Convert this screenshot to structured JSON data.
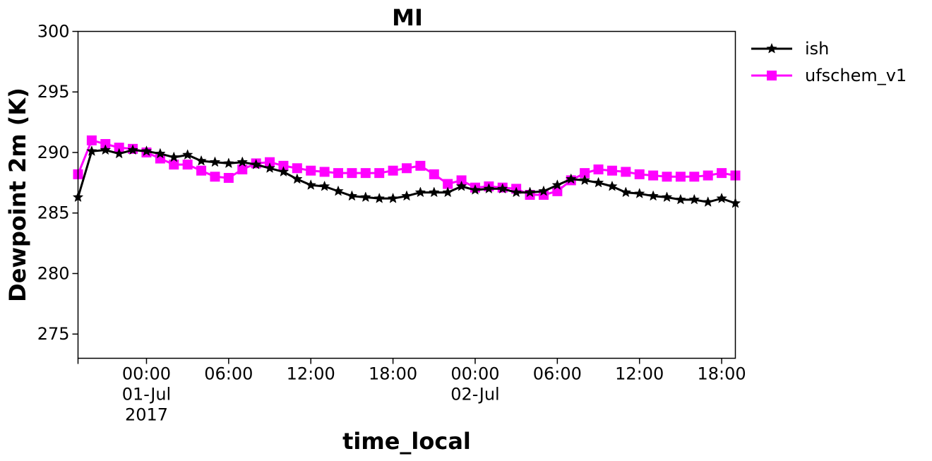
{
  "chart_data": {
    "type": "line",
    "title": "MI",
    "xlabel": "time_local",
    "ylabel": "Dewpoint 2m (K)",
    "ylim": [
      273,
      300
    ],
    "yticks": [
      275,
      280,
      285,
      290,
      295,
      300
    ],
    "xlim": [
      "2017-06-30 19:00",
      "2017-07-02 19:00"
    ],
    "xticks": [
      {
        "lines": [
          "00:00",
          "01-Jul",
          "2017"
        ]
      },
      {
        "lines": [
          "06:00"
        ]
      },
      {
        "lines": [
          "12:00"
        ]
      },
      {
        "lines": [
          "18:00"
        ]
      },
      {
        "lines": [
          "00:00",
          "02-Jul"
        ]
      },
      {
        "lines": [
          "06:00"
        ]
      },
      {
        "lines": [
          "12:00"
        ]
      },
      {
        "lines": [
          "18:00"
        ]
      }
    ],
    "x_start": "2017-06-30 19:00",
    "x_step": "1 hour",
    "series": [
      {
        "name": "ish",
        "color": "#000000",
        "marker": "star",
        "values": [
          286.3,
          290.1,
          290.2,
          289.9,
          290.2,
          290.1,
          289.9,
          289.6,
          289.8,
          289.3,
          289.2,
          289.1,
          289.2,
          289.0,
          288.7,
          288.4,
          287.8,
          287.3,
          287.2,
          286.8,
          286.4,
          286.3,
          286.2,
          286.2,
          286.4,
          286.7,
          286.7,
          286.7,
          287.2,
          286.9,
          287.0,
          287.0,
          286.7,
          286.7,
          286.8,
          287.3,
          287.8,
          287.7,
          287.5,
          287.2,
          286.7,
          286.6,
          286.4,
          286.3,
          286.1,
          286.1,
          285.9,
          286.2,
          285.8
        ]
      },
      {
        "name": "ufschem_v1",
        "color": "#ff00ff",
        "marker": "square",
        "values": [
          288.2,
          291.0,
          290.7,
          290.4,
          290.3,
          290.0,
          289.5,
          289.0,
          289.0,
          288.5,
          288.0,
          287.9,
          288.6,
          289.1,
          289.2,
          288.9,
          288.7,
          288.5,
          288.4,
          288.3,
          288.3,
          288.3,
          288.3,
          288.5,
          288.7,
          288.9,
          288.2,
          287.4,
          287.7,
          287.1,
          287.2,
          287.1,
          287.0,
          286.5,
          286.5,
          286.8,
          287.7,
          288.3,
          288.6,
          288.5,
          288.4,
          288.2,
          288.1,
          288.0,
          288.0,
          288.0,
          288.1,
          288.3,
          288.1
        ]
      }
    ]
  },
  "legend": {
    "items": [
      {
        "label": "ish",
        "color": "#000000",
        "marker": "star"
      },
      {
        "label": "ufschem_v1",
        "color": "#ff00ff",
        "marker": "square"
      }
    ]
  }
}
